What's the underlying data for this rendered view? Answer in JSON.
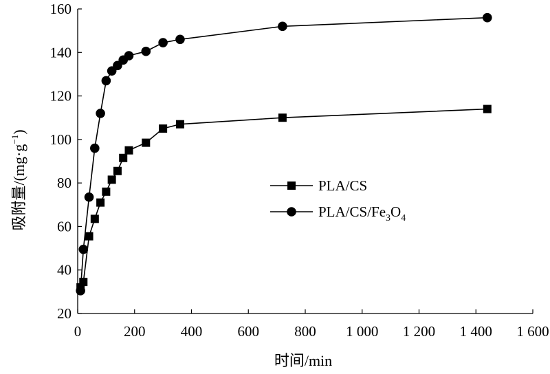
{
  "chart_data": {
    "type": "line",
    "title": "",
    "xlabel": "时间/min",
    "ylabel": {
      "main": "吸附量/(mg·g",
      "sup": "−1",
      "close": ")"
    },
    "xlim": [
      0,
      1600
    ],
    "ylim": [
      20,
      160
    ],
    "x_ticks": [
      0,
      200,
      400,
      600,
      800,
      1000,
      1200,
      1400,
      1600
    ],
    "x_tick_labels": [
      "0",
      "200",
      "400",
      "600",
      "800",
      "1 000",
      "1 200",
      "1 400",
      "1 600"
    ],
    "y_ticks": [
      20,
      40,
      60,
      80,
      100,
      120,
      140,
      160
    ],
    "y_tick_labels": [
      "20",
      "40",
      "60",
      "80",
      "100",
      "120",
      "140",
      "160"
    ],
    "grid": false,
    "legend_position": "center-right",
    "series": [
      {
        "name": "PLA/CS",
        "marker": "square",
        "color": "#000000",
        "legend_label": [
          {
            "t": "PLA/CS"
          }
        ],
        "x": [
          10,
          20,
          40,
          60,
          80,
          100,
          120,
          140,
          160,
          180,
          240,
          300,
          360,
          720,
          1440
        ],
        "y": [
          32,
          34.5,
          55.5,
          63.5,
          71,
          76,
          81.5,
          85.5,
          91.5,
          95,
          98.5,
          105,
          107,
          110,
          114
        ]
      },
      {
        "name": "PLA/CS/Fe3O4",
        "marker": "circle",
        "color": "#000000",
        "legend_label": [
          {
            "t": "PLA/CS/Fe"
          },
          {
            "t": "3",
            "sub": true
          },
          {
            "t": "O"
          },
          {
            "t": "4",
            "sub": true
          }
        ],
        "x": [
          10,
          20,
          40,
          60,
          80,
          100,
          120,
          140,
          160,
          180,
          240,
          300,
          360,
          720,
          1440
        ],
        "y": [
          30.5,
          49.5,
          73.5,
          96,
          112,
          127,
          131.5,
          134,
          136.5,
          138.5,
          140.5,
          144.5,
          146,
          152,
          156
        ]
      }
    ]
  }
}
